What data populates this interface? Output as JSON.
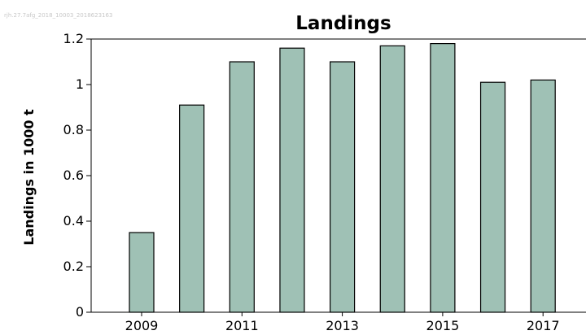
{
  "watermark": "rjh.27.7afg_2018_10003_2018623163",
  "chart_data": {
    "type": "bar",
    "title": "Landings",
    "xlabel": "",
    "ylabel": "Landings in 1000 t",
    "categories": [
      "2009",
      "2010",
      "2011",
      "2012",
      "2013",
      "2014",
      "2015",
      "2016",
      "2017"
    ],
    "values": [
      0.35,
      0.91,
      1.1,
      1.16,
      1.1,
      1.17,
      1.18,
      1.01,
      1.02
    ],
    "ylim": [
      0,
      1.2
    ],
    "yticks": [
      0,
      0.2,
      0.4,
      0.6,
      0.8,
      1,
      1.2
    ],
    "ytick_labels": [
      "0",
      "0.2",
      "0.4",
      "0.6",
      "0.8",
      "1",
      "1.2"
    ],
    "xtick_labels": [
      "2009",
      "2011",
      "2013",
      "2015",
      "2017"
    ],
    "grid": false,
    "legend": "none",
    "bar_color": "#9fc1b5",
    "edge_color": "#000000"
  }
}
